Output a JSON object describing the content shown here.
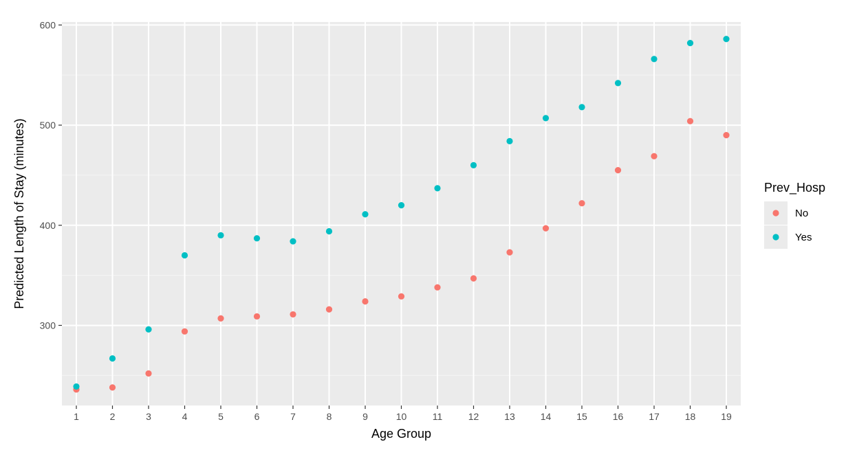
{
  "chart_data": {
    "type": "scatter",
    "title": "",
    "xlabel": "Age Group",
    "ylabel": "Predicted Length of Stay (minutes)",
    "x": [
      1,
      2,
      3,
      4,
      5,
      6,
      7,
      8,
      9,
      10,
      11,
      12,
      13,
      14,
      15,
      16,
      17,
      18,
      19
    ],
    "x_ticks": [
      "1",
      "2",
      "3",
      "4",
      "5",
      "6",
      "7",
      "8",
      "9",
      "10",
      "11",
      "12",
      "13",
      "14",
      "15",
      "16",
      "17",
      "18",
      "19"
    ],
    "y_ticks": [
      300,
      400,
      500,
      600
    ],
    "xlim": [
      0.6,
      19.4
    ],
    "ylim": [
      220,
      603
    ],
    "grid": true,
    "legend_position": "right",
    "legend_title": "Prev_Hosp",
    "series": [
      {
        "name": "No",
        "color": "#F8766D",
        "values": [
          236,
          238,
          252,
          294,
          307,
          309,
          311,
          316,
          324,
          329,
          338,
          347,
          373,
          397,
          422,
          455,
          469,
          504,
          490
        ]
      },
      {
        "name": "Yes",
        "color": "#00BFC4",
        "values": [
          239,
          267,
          296,
          370,
          390,
          387,
          384,
          394,
          411,
          420,
          437,
          460,
          484,
          507,
          518,
          542,
          566,
          582,
          586
        ]
      }
    ]
  }
}
